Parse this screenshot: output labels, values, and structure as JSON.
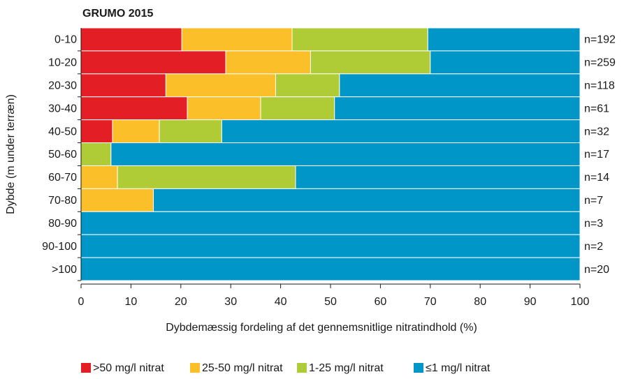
{
  "chart_data": {
    "type": "stacked-barh",
    "title": "GRUMO 2015",
    "x_label": "Dybdemæssig fordeling af det gennemsnitlige nitratindhold (%)",
    "y_label": "Dybde (m under terræn)",
    "categories": [
      "0-10",
      "10-20",
      "20-30",
      "30-40",
      "40-50",
      "50-60",
      "60-70",
      "70-80",
      "80-90",
      "90-100",
      ">100"
    ],
    "right_labels": [
      "n=192",
      "n=259",
      "n=118",
      "n=61",
      "n=32",
      "n=17",
      "n=14",
      "n=7",
      "n=3",
      "n=2",
      "n=20"
    ],
    "series": [
      {
        "name": ">50 mg/l nitrat",
        "color": "#e31e24",
        "values": [
          20.2,
          29,
          17,
          21.3,
          6.3,
          0,
          0,
          0,
          0,
          0,
          0
        ]
      },
      {
        "name": "25-50 mg/l nitrat",
        "color": "#fbbf2a",
        "values": [
          22.1,
          17,
          22,
          14.7,
          9.4,
          0,
          7.3,
          14.5,
          0,
          0,
          0
        ]
      },
      {
        "name": "1-25 mg/l nitrat",
        "color": "#afcb36",
        "values": [
          27.2,
          24,
          12.8,
          14.8,
          12.5,
          6,
          35.7,
          0,
          0,
          0,
          0
        ]
      },
      {
        "name": "≤1 mg/l nitrat",
        "color": "#0097c8",
        "values": [
          30.5,
          30,
          48.2,
          49.2,
          71.8,
          94,
          57,
          85.5,
          100,
          100,
          100
        ]
      }
    ],
    "xlim": [
      0,
      100
    ],
    "xticks": [
      0,
      10,
      20,
      30,
      40,
      50,
      60,
      70,
      80,
      90,
      100
    ],
    "legend": "bottom"
  }
}
